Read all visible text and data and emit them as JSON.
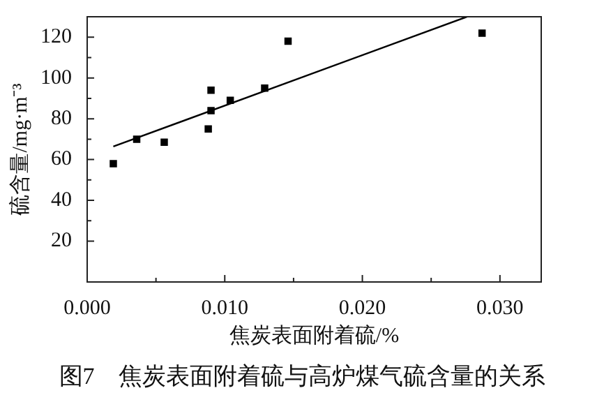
{
  "chart_data": {
    "type": "scatter",
    "xlabel": "焦炭表面附着硫/%",
    "ylabel": "硫含量/mg·m⁻³",
    "annotations": [
      "图7　焦炭表面附着硫与高炉煤气硫含量的关系"
    ],
    "series": [
      {
        "color": "#000000",
        "x": [
          0.0019,
          0.0036,
          0.0056,
          0.0088,
          0.009,
          0.009,
          0.0104,
          0.0129,
          0.0146,
          0.0287
        ],
        "values": [
          58,
          70,
          68.5,
          75,
          94,
          84,
          89,
          95,
          118,
          122
        ]
      },
      {
        "type": "line",
        "marker": "none",
        "color": "#000000",
        "x": [
          0.0019,
          0.0276
        ],
        "values": [
          66.4,
          130
        ]
      }
    ],
    "xlim": [
      0,
      0.033
    ],
    "xticks": [
      {
        "value": 0,
        "label": "0.000"
      },
      {
        "value": 0.01,
        "label": "0.010"
      },
      {
        "value": 0.02,
        "label": "0.020"
      },
      {
        "value": 0.03,
        "label": "0.030"
      }
    ],
    "ylim": [
      0,
      130
    ],
    "yticks": [
      20,
      40,
      60,
      80,
      100,
      120
    ],
    "marker": "square",
    "grid": false,
    "legend": false
  }
}
